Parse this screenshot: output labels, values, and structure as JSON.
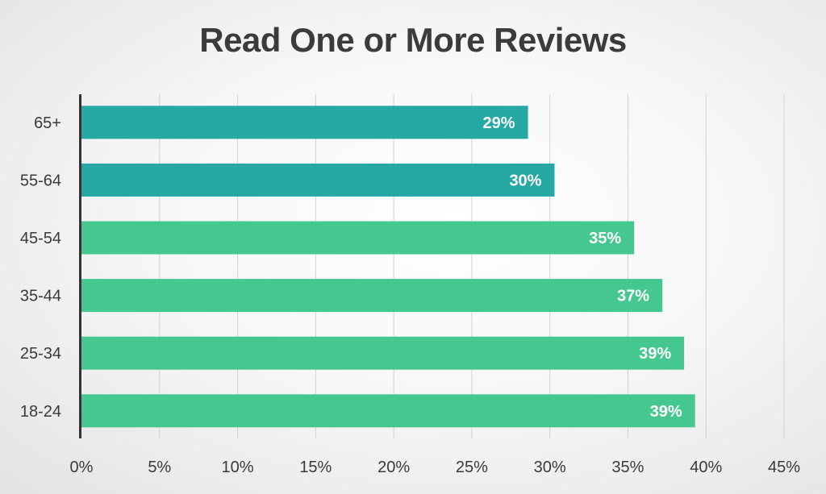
{
  "chart_data": {
    "type": "bar",
    "orientation": "horizontal",
    "title": "Read One or More Reviews",
    "categories": [
      "65+",
      "55-64",
      "45-54",
      "35-44",
      "25-34",
      "18-24"
    ],
    "values": [
      28.6,
      30.3,
      35.4,
      37.2,
      38.6,
      39.3
    ],
    "data_labels": [
      "29%",
      "30%",
      "35%",
      "37%",
      "39%",
      "39%"
    ],
    "xlim": [
      0,
      45
    ],
    "x_ticks": [
      0,
      5,
      10,
      15,
      20,
      25,
      30,
      35,
      40,
      45
    ],
    "x_tick_labels": [
      "0%",
      "5%",
      "10%",
      "15%",
      "20%",
      "25%",
      "30%",
      "35%",
      "40%",
      "45%"
    ],
    "grid": "vertical",
    "legend": "none",
    "bar_colors": [
      "#26a9a5",
      "#26a9a5",
      "#44c890",
      "#44c890",
      "#44c890",
      "#44c890"
    ]
  }
}
